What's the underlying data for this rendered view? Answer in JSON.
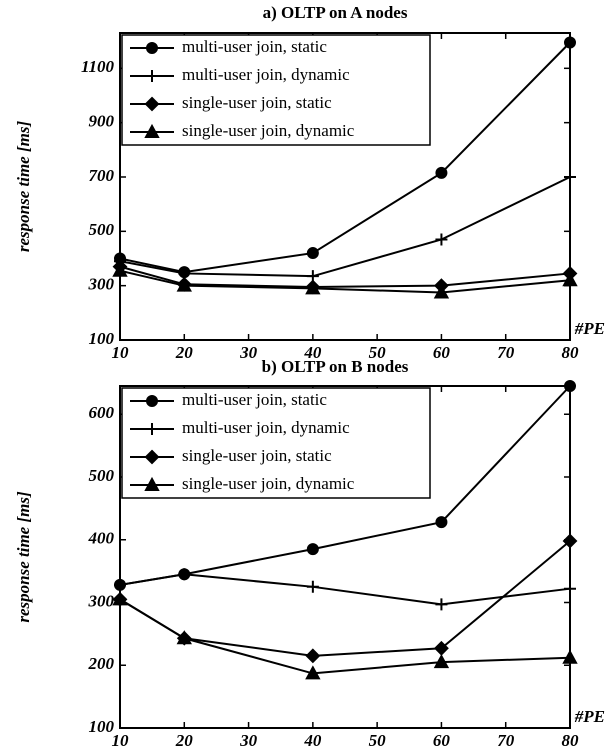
{
  "chart_data": [
    {
      "type": "line",
      "title": "a) OLTP on A nodes",
      "y_label": "response time [ms]",
      "x_label": "#PE",
      "x": [
        10,
        20,
        40,
        60,
        80
      ],
      "xlim": [
        10,
        80
      ],
      "xticks": [
        10,
        20,
        30,
        40,
        50,
        60,
        70,
        80
      ],
      "ylim": [
        100,
        1230
      ],
      "yticks": [
        100,
        300,
        500,
        700,
        900,
        1100
      ],
      "series": [
        {
          "name": "multi-user join, static",
          "color": "#000000",
          "marker": "circle",
          "values": [
            400,
            350,
            420,
            715,
            1195
          ]
        },
        {
          "name": "multi-user join, dynamic",
          "color": "#000000",
          "marker": "plus",
          "values": [
            390,
            345,
            335,
            470,
            700
          ]
        },
        {
          "name": "single-user join, static",
          "color": "#000000",
          "marker": "diamond",
          "values": [
            370,
            305,
            295,
            300,
            345
          ]
        },
        {
          "name": "single-user join, dynamic",
          "color": "#000000",
          "marker": "triangle",
          "values": [
            355,
            300,
            290,
            275,
            320
          ]
        }
      ]
    },
    {
      "type": "line",
      "title": "b) OLTP on B nodes",
      "y_label": "response time [ms]",
      "x_label": "#PE",
      "x": [
        10,
        20,
        40,
        60,
        80
      ],
      "xlim": [
        10,
        80
      ],
      "xticks": [
        10,
        20,
        30,
        40,
        50,
        60,
        70,
        80
      ],
      "ylim": [
        100,
        645
      ],
      "yticks": [
        100,
        200,
        300,
        400,
        500,
        600
      ],
      "series": [
        {
          "name": "multi-user join, static",
          "color": "#000000",
          "marker": "circle",
          "values": [
            328,
            345,
            385,
            428,
            645
          ]
        },
        {
          "name": "multi-user join, dynamic",
          "color": "#000000",
          "marker": "plus",
          "values": [
            328,
            345,
            325,
            297,
            322
          ]
        },
        {
          "name": "single-user join, static",
          "color": "#000000",
          "marker": "diamond",
          "values": [
            305,
            243,
            215,
            227,
            398
          ]
        },
        {
          "name": "single-user join, dynamic",
          "color": "#000000",
          "marker": "triangle",
          "values": [
            305,
            243,
            187,
            205,
            212
          ]
        }
      ]
    }
  ]
}
